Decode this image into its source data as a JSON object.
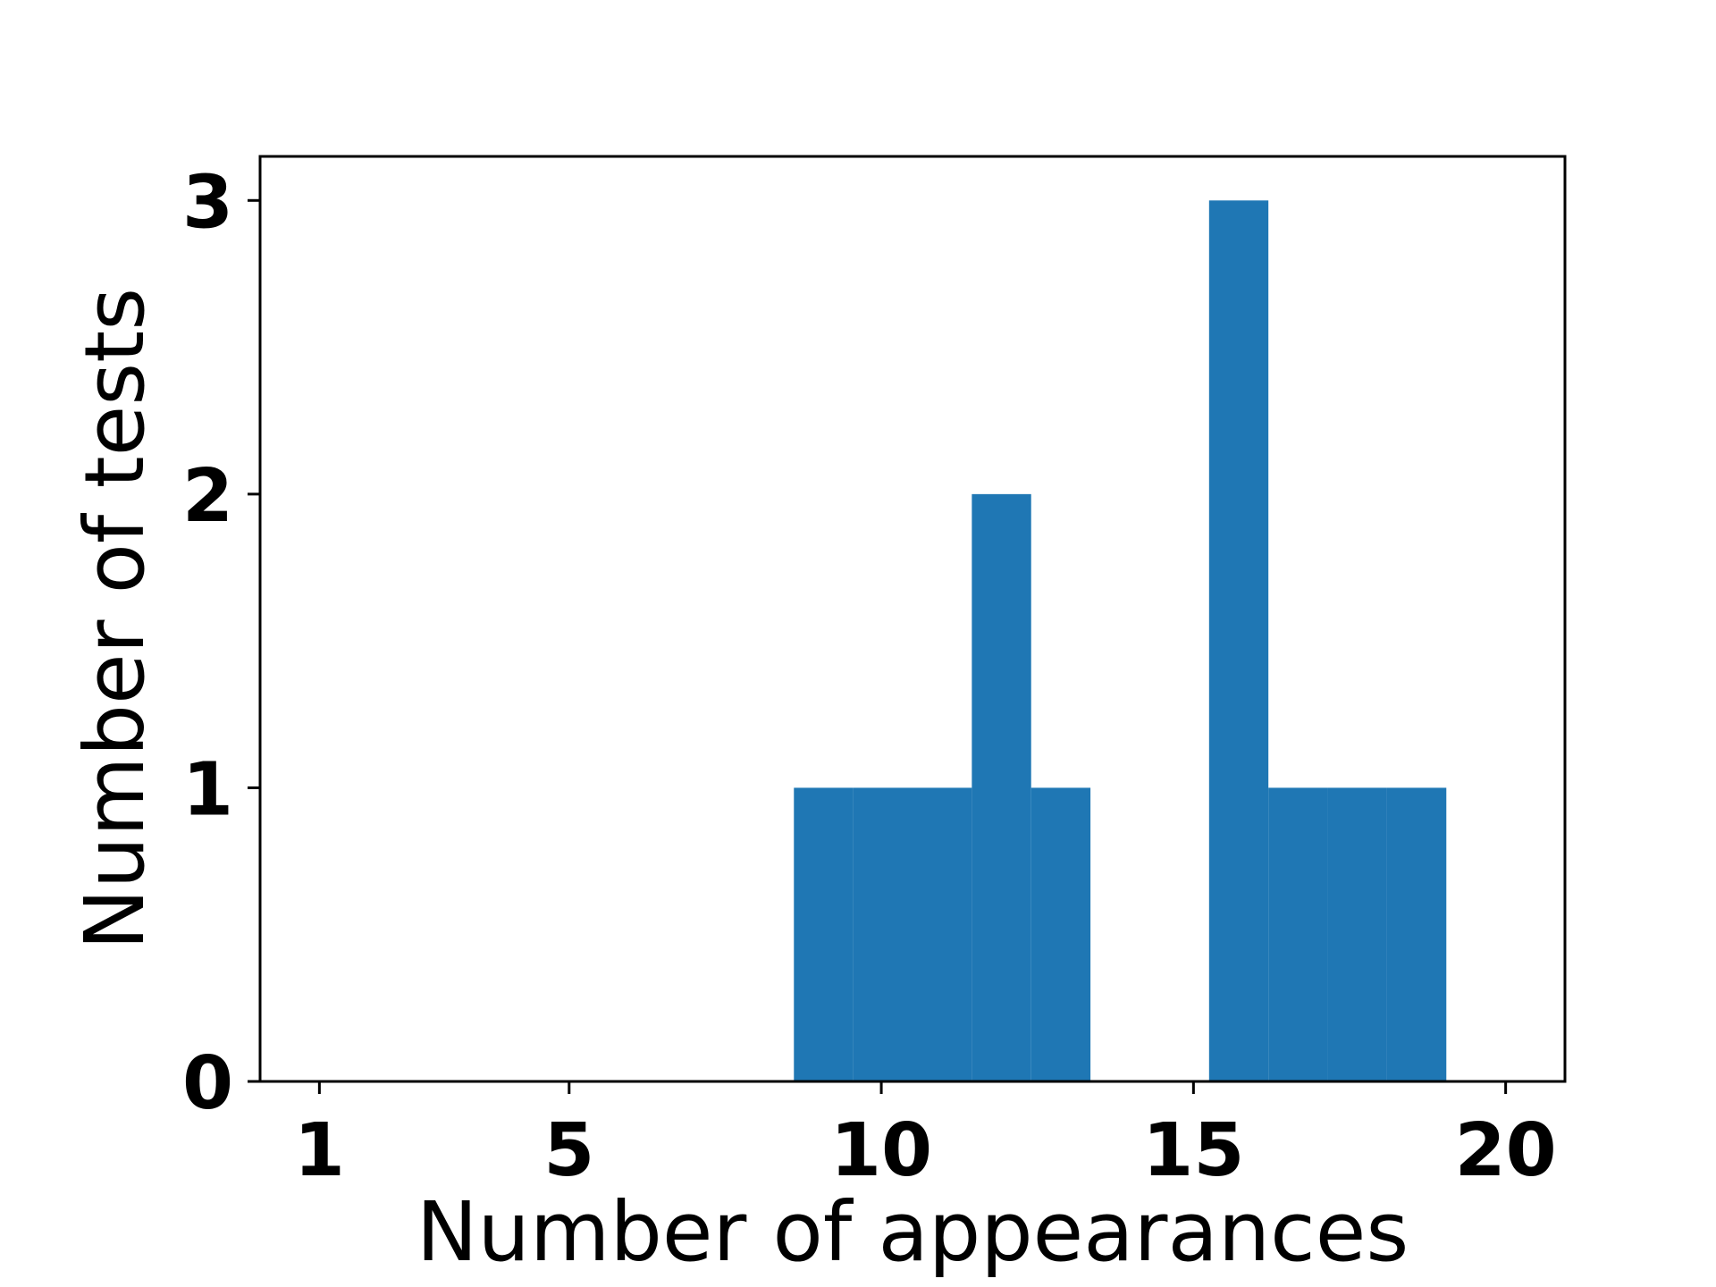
{
  "chart_data": {
    "type": "bar",
    "title": "",
    "xlabel": "Number of appearances",
    "ylabel": "Number of tests",
    "bar_color": "#1f77b4",
    "xlim": [
      0.05,
      20.95
    ],
    "ylim": [
      0,
      3.15
    ],
    "x_ticks": [
      1,
      5,
      10,
      15,
      20
    ],
    "y_ticks": [
      0,
      1,
      2,
      3
    ],
    "bins": [
      {
        "x0": 8.6,
        "x1": 9.55,
        "count": 1
      },
      {
        "x0": 9.55,
        "x1": 10.5,
        "count": 1
      },
      {
        "x0": 10.5,
        "x1": 11.45,
        "count": 1
      },
      {
        "x0": 11.45,
        "x1": 12.4,
        "count": 2
      },
      {
        "x0": 12.4,
        "x1": 13.35,
        "count": 1
      },
      {
        "x0": 13.35,
        "x1": 14.3,
        "count": 0
      },
      {
        "x0": 14.3,
        "x1": 15.25,
        "count": 0
      },
      {
        "x0": 15.25,
        "x1": 16.2,
        "count": 3
      },
      {
        "x0": 16.2,
        "x1": 17.15,
        "count": 1
      },
      {
        "x0": 17.15,
        "x1": 18.1,
        "count": 1
      },
      {
        "x0": 18.1,
        "x1": 19.05,
        "count": 1
      }
    ],
    "grid": false,
    "legend": "none"
  }
}
